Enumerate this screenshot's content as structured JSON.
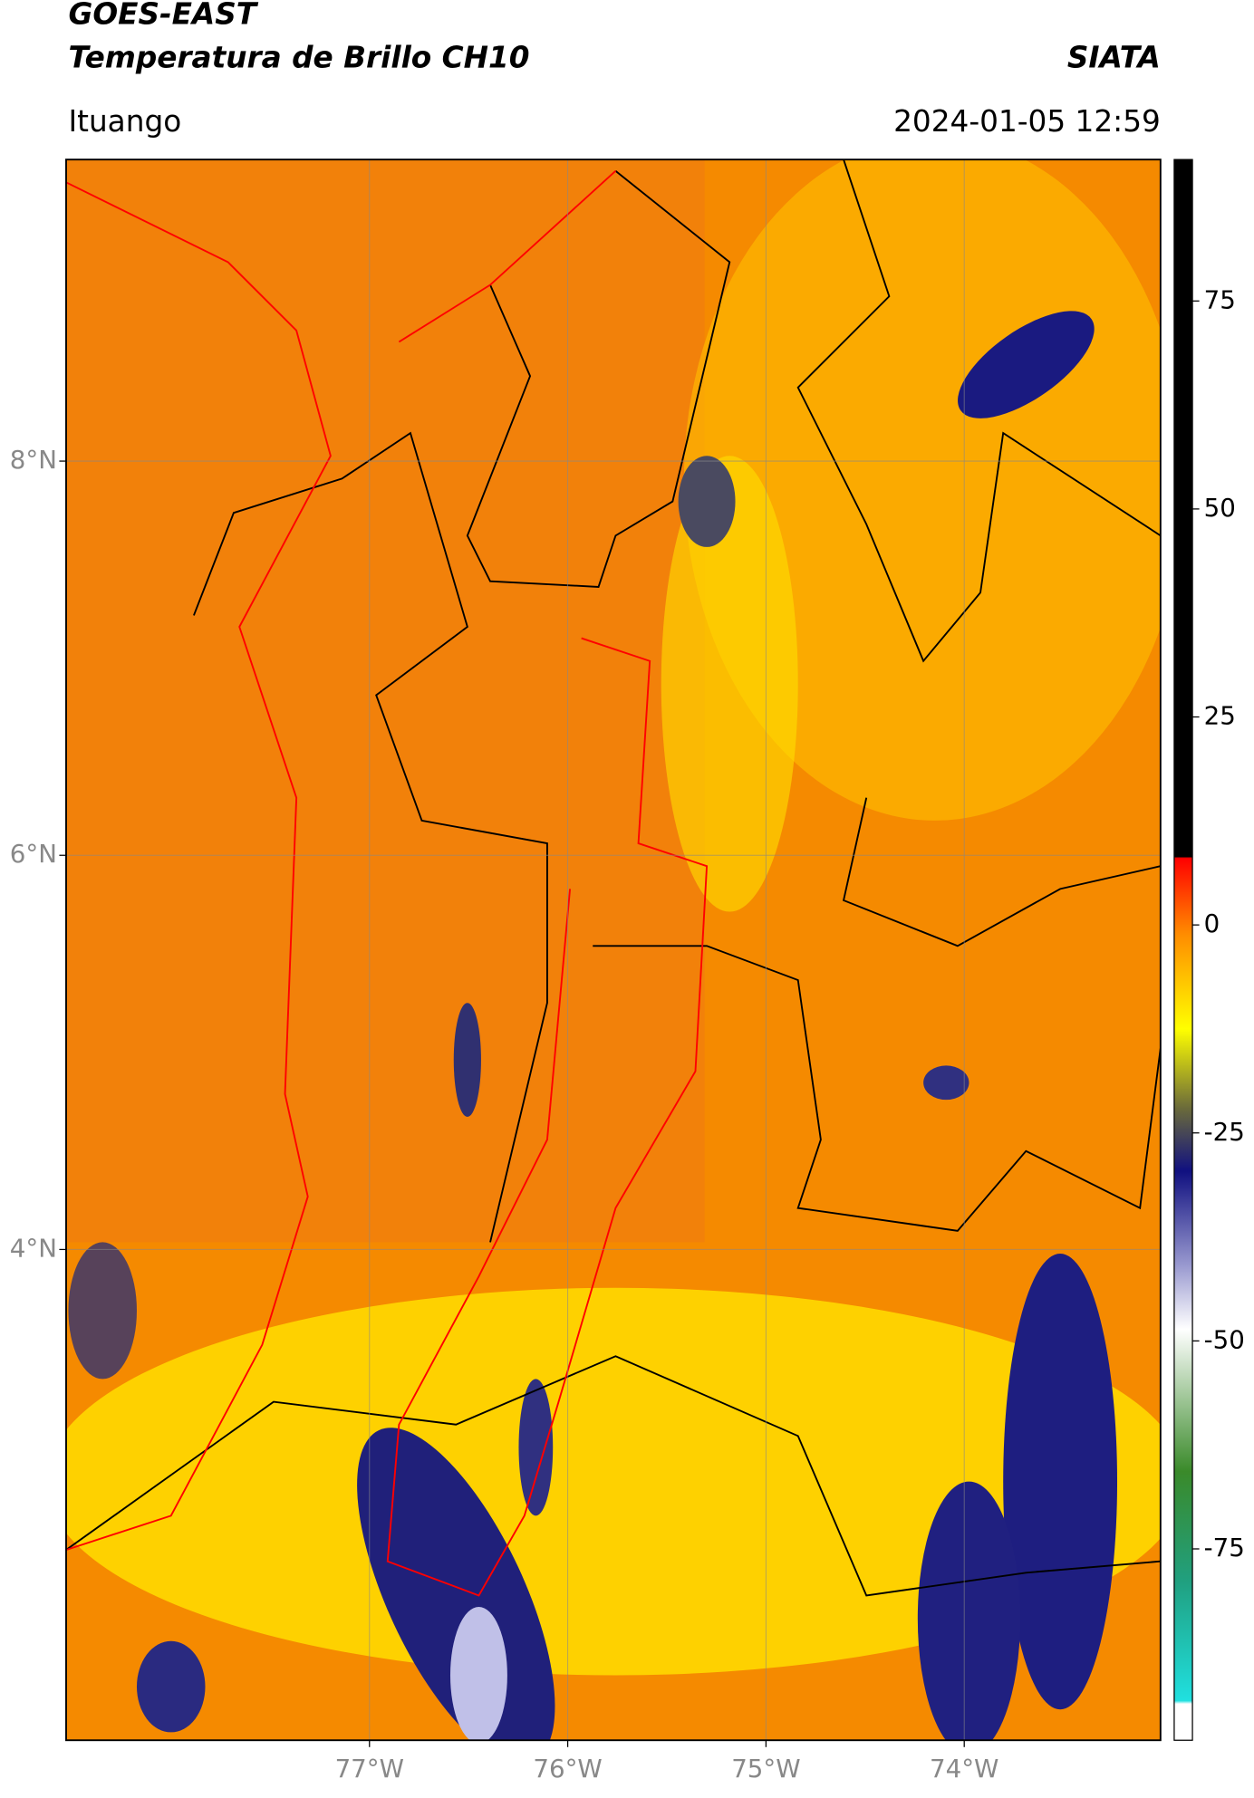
{
  "header": {
    "title": "GOES-EAST",
    "subtitle": "Temperatura de Brillo CH10",
    "brand": "SIATA",
    "location": "Ituango",
    "datetime": "2024-01-05 12:59"
  },
  "map": {
    "xlim": [
      -78.53,
      -73.01
    ],
    "ylim": [
      1.51,
      9.53
    ],
    "xticks": [
      {
        "value": -77,
        "label": "77°W"
      },
      {
        "value": -76,
        "label": "76°W"
      },
      {
        "value": -75,
        "label": "75°W"
      },
      {
        "value": -74,
        "label": "74°W"
      }
    ],
    "yticks": [
      {
        "value": 4,
        "label": "4°N"
      },
      {
        "value": 6,
        "label": "6°N"
      },
      {
        "value": 8,
        "label": "8°N"
      }
    ],
    "grid": true
  },
  "colorbar": {
    "lim": [
      -98,
      92
    ],
    "ticks": [
      -75,
      -50,
      -25,
      0,
      25,
      50,
      75
    ]
  }
}
